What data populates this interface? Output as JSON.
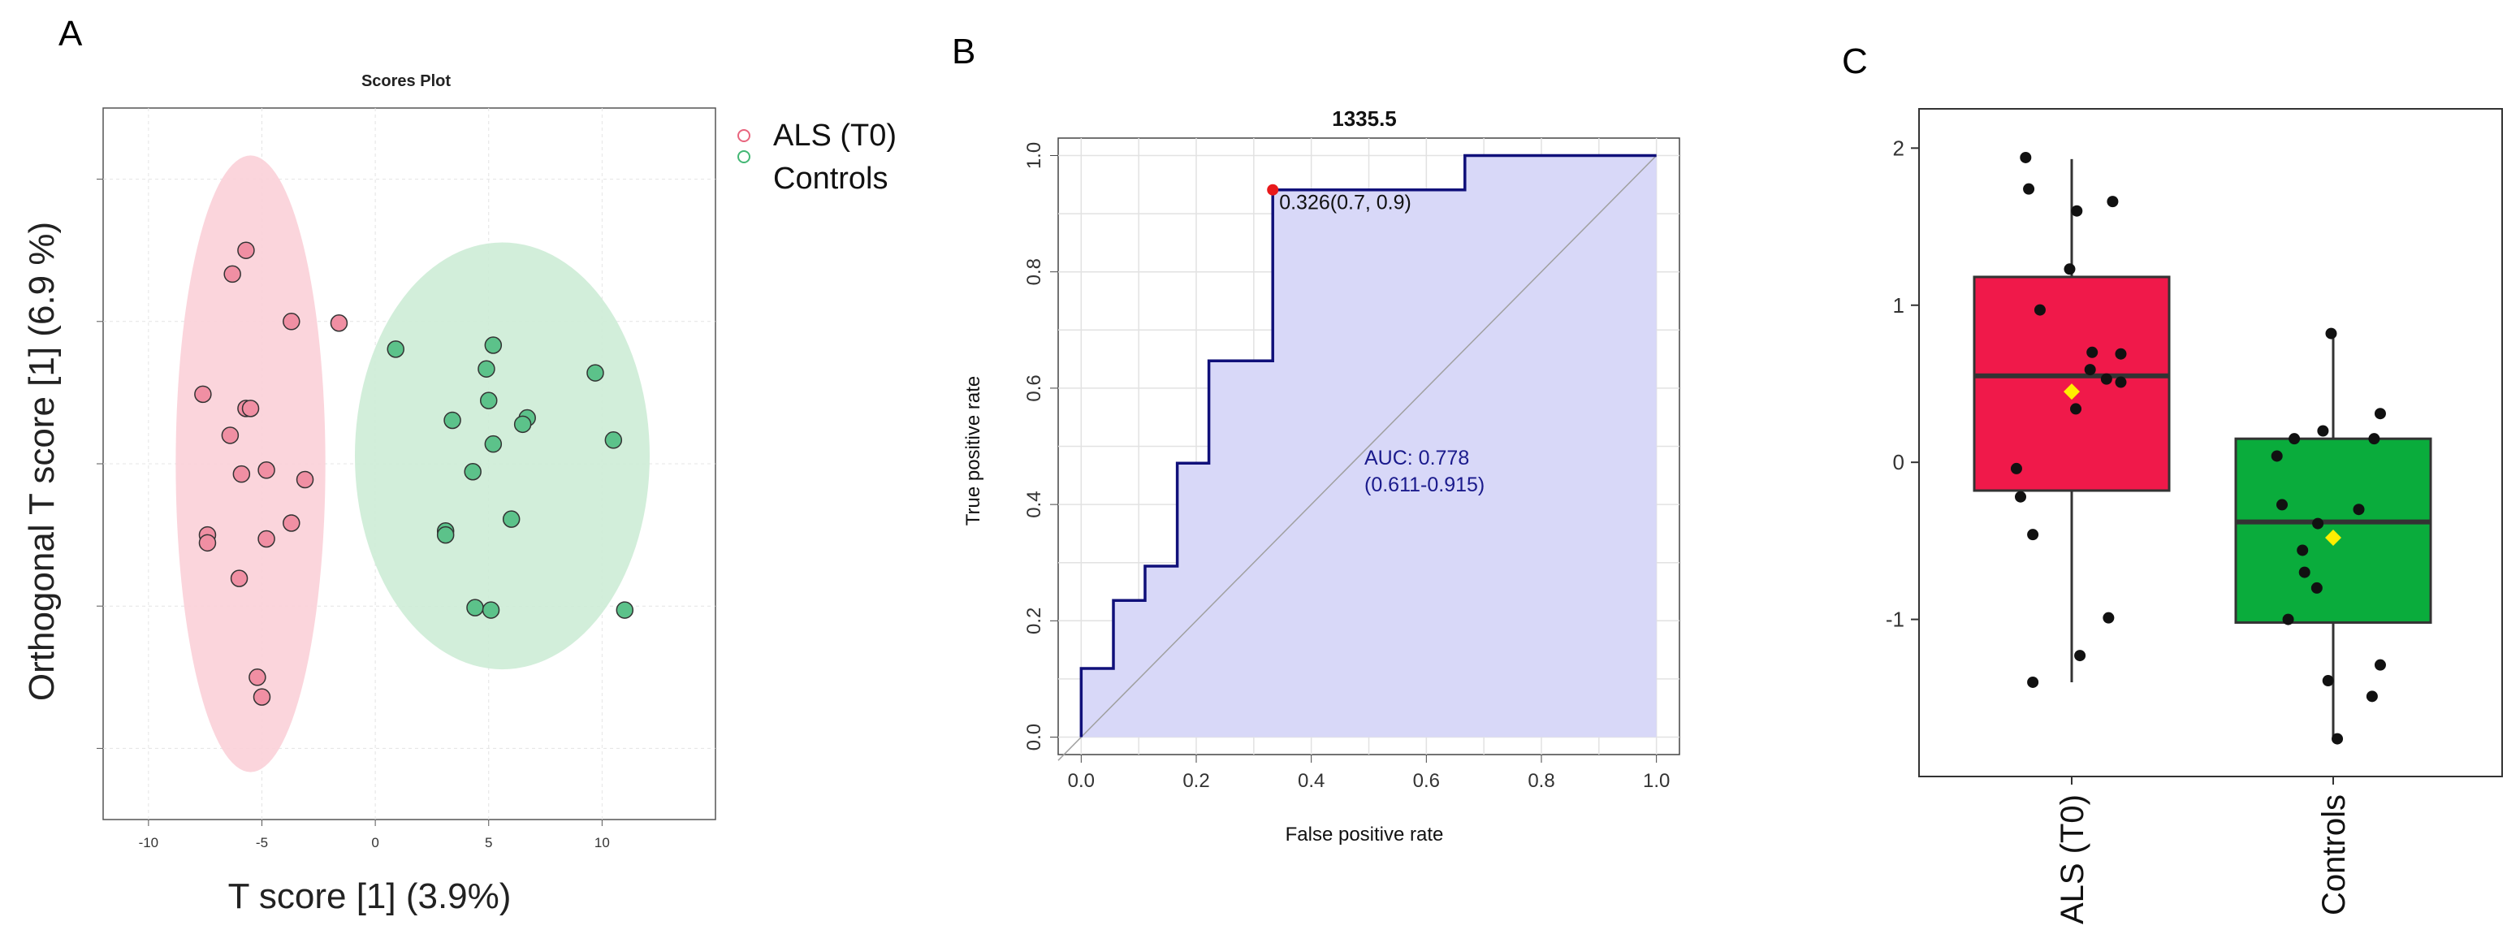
{
  "panel_letters": [
    "A",
    "B",
    "C"
  ],
  "colors": {
    "als": "#f08fa3",
    "als_ellipse": "#fbd0d8",
    "controls": "#5cc28a",
    "controls_ellipse": "#cdecd6",
    "roc_fill": "#d8d8f8",
    "roc_line": "#10107a",
    "box_als": "#f0194a",
    "box_controls": "#0aac3c",
    "mean_marker": "#ffee00",
    "point_cut": "#e8191b"
  },
  "chart_data": [
    {
      "type": "scatter",
      "title": "Scores Plot",
      "xlabel": "T score [1] (3.9%)",
      "ylabel": "Orthogonal T score [1] (6.9 %)",
      "xlim": [
        -12,
        15
      ],
      "ylim": [
        -4.5,
        4.5
      ],
      "xticks": [
        -10,
        -5,
        0,
        5,
        10
      ],
      "yticks_count": 5,
      "legend": [
        "ALS (T0)",
        "Controls"
      ],
      "series": [
        {
          "name": "ALS (T0)",
          "points": [
            [
              -5.7,
              2.7
            ],
            [
              -6.3,
              2.4
            ],
            [
              -3.7,
              1.8
            ],
            [
              -1.6,
              1.78
            ],
            [
              -7.6,
              0.88
            ],
            [
              -5.7,
              0.7
            ],
            [
              -5.5,
              0.7
            ],
            [
              -6.4,
              0.36
            ],
            [
              -4.8,
              -0.08
            ],
            [
              -5.9,
              -0.13
            ],
            [
              -3.1,
              -0.2
            ],
            [
              -7.4,
              -0.9
            ],
            [
              -7.4,
              -1.0
            ],
            [
              -4.8,
              -0.95
            ],
            [
              -3.7,
              -0.75
            ],
            [
              -6.0,
              -1.45
            ],
            [
              -5.2,
              -2.7
            ],
            [
              -5.0,
              -2.95
            ]
          ],
          "ellipse": {
            "cx": -5.5,
            "cy": 0.0,
            "rx": 3.3,
            "ry": 3.9
          }
        },
        {
          "name": "Controls",
          "points": [
            [
              0.9,
              1.45
            ],
            [
              5.2,
              1.5
            ],
            [
              4.9,
              1.2
            ],
            [
              9.7,
              1.15
            ],
            [
              5.0,
              0.8
            ],
            [
              3.4,
              0.55
            ],
            [
              6.7,
              0.58
            ],
            [
              6.5,
              0.5
            ],
            [
              5.2,
              0.25
            ],
            [
              10.5,
              0.3
            ],
            [
              4.3,
              -0.1
            ],
            [
              6.0,
              -0.7
            ],
            [
              3.1,
              -0.85
            ],
            [
              3.1,
              -0.9
            ],
            [
              4.4,
              -1.82
            ],
            [
              5.1,
              -1.85
            ],
            [
              11.0,
              -1.85
            ]
          ],
          "ellipse": {
            "cx": 5.6,
            "cy": 0.1,
            "rx": 6.5,
            "ry": 2.7
          }
        }
      ]
    },
    {
      "type": "line",
      "title": "1335.5",
      "xlabel": "False positive rate",
      "ylabel": "True positive rate",
      "xlim": [
        -0.04,
        1.04
      ],
      "ylim": [
        -0.03,
        1.03
      ],
      "xticks": [
        "0.0",
        "0.2",
        "0.4",
        "0.6",
        "0.8",
        "1.0"
      ],
      "yticks": [
        "0.0",
        "0.2",
        "0.4",
        "0.6",
        "0.8",
        "1.0"
      ],
      "series": [
        {
          "name": "ROC",
          "x": [
            0,
            0,
            0.056,
            0.056,
            0.111,
            0.111,
            0.167,
            0.167,
            0.222,
            0.222,
            0.333,
            0.333,
            0.667,
            0.667,
            1.0
          ],
          "y": [
            0,
            0.118,
            0.118,
            0.235,
            0.235,
            0.294,
            0.294,
            0.471,
            0.471,
            0.647,
            0.647,
            0.941,
            0.941,
            1.0,
            1.0
          ]
        }
      ],
      "auc_label": "AUC: 0.778",
      "ci_label": "(0.611-0.915)",
      "cutoff_point": {
        "x": 0.333,
        "y": 0.941,
        "label": "0.326(0.7, 0.9)"
      }
    },
    {
      "type": "box",
      "categories": [
        "ALS (T0)",
        "Controls"
      ],
      "ylim": [
        -2.0,
        2.25
      ],
      "yticks": [
        "2",
        "1",
        "0",
        "-1"
      ],
      "series": [
        {
          "name": "ALS (T0)",
          "q1": -0.18,
          "median": 0.55,
          "q3": 1.18,
          "whisker_low": -1.4,
          "whisker_high": 1.93,
          "mean": 0.45,
          "points": [
            [
              -0.45,
              1.94
            ],
            [
              -0.42,
              1.74
            ],
            [
              0.05,
              1.6
            ],
            [
              0.4,
              1.66
            ],
            [
              -0.02,
              1.23
            ],
            [
              -0.31,
              0.97
            ],
            [
              0.2,
              0.7
            ],
            [
              0.48,
              0.69
            ],
            [
              0.18,
              0.59
            ],
            [
              0.34,
              0.53
            ],
            [
              0.48,
              0.51
            ],
            [
              0.04,
              0.34
            ],
            [
              -0.54,
              -0.04
            ],
            [
              -0.5,
              -0.22
            ],
            [
              -0.38,
              -0.46
            ],
            [
              0.36,
              -0.99
            ],
            [
              0.08,
              -1.23
            ],
            [
              -0.38,
              -1.4
            ]
          ]
        },
        {
          "name": "Controls",
          "q1": -1.02,
          "median": -0.38,
          "q3": 0.15,
          "whisker_low": -1.75,
          "whisker_high": 0.82,
          "mean": -0.48,
          "points": [
            [
              -0.02,
              0.82
            ],
            [
              0.46,
              0.31
            ],
            [
              -0.1,
              0.2
            ],
            [
              -0.38,
              0.15
            ],
            [
              0.4,
              0.15
            ],
            [
              -0.55,
              0.04
            ],
            [
              -0.5,
              -0.27
            ],
            [
              0.25,
              -0.3
            ],
            [
              -0.15,
              -0.39
            ],
            [
              -0.3,
              -0.56
            ],
            [
              -0.28,
              -0.7
            ],
            [
              -0.16,
              -0.8
            ],
            [
              -0.44,
              -1.0
            ],
            [
              0.46,
              -1.29
            ],
            [
              -0.05,
              -1.39
            ],
            [
              0.38,
              -1.49
            ],
            [
              0.04,
              -1.76
            ]
          ]
        }
      ]
    }
  ]
}
